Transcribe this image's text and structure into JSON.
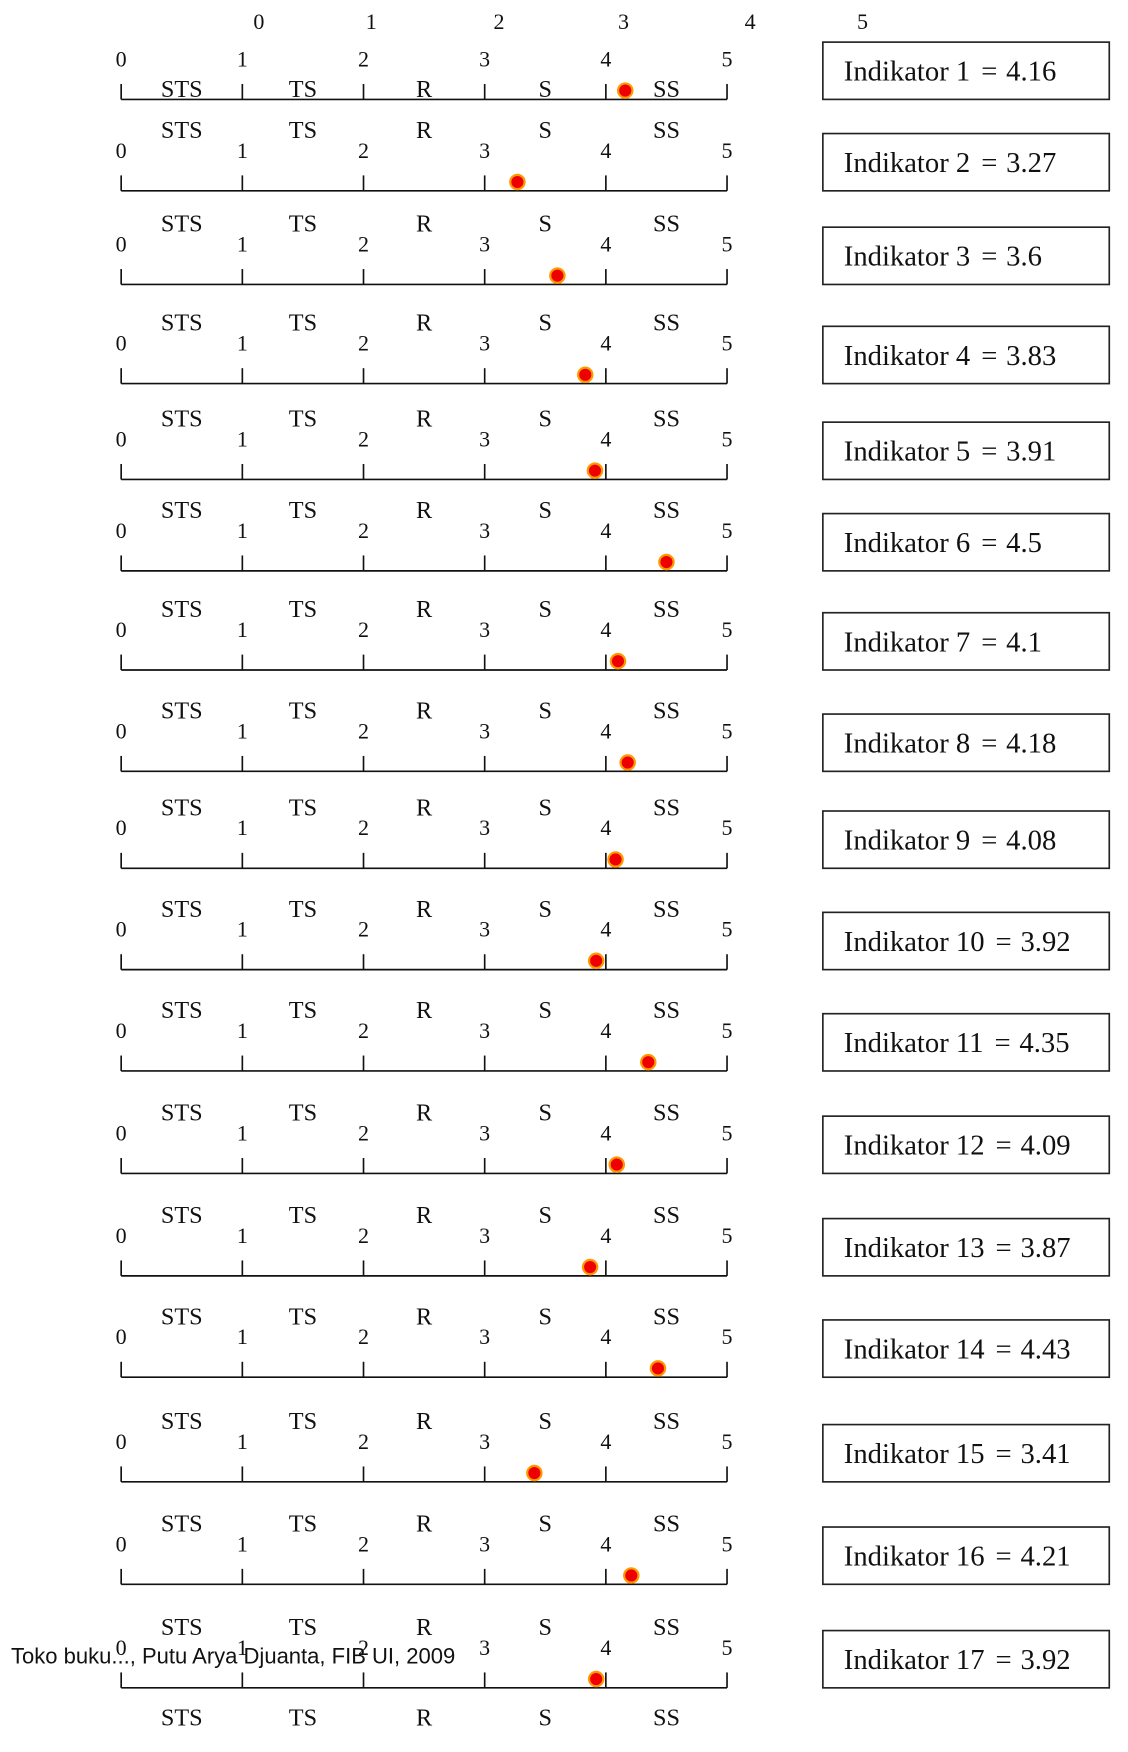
{
  "scale": {
    "ticks": [
      0,
      1,
      2,
      3,
      4,
      5
    ],
    "categories": [
      "STS",
      "TS",
      "R",
      "S",
      "SS"
    ]
  },
  "operator": "=",
  "indicators": [
    {
      "label": "Indikator 1",
      "value": 4.16
    },
    {
      "label": "Indikator 2",
      "value": 3.27
    },
    {
      "label": "Indikator 3",
      "value": 3.6
    },
    {
      "label": "Indikator 4",
      "value": 3.83
    },
    {
      "label": "Indikator 5",
      "value": 3.91
    },
    {
      "label": "Indikator 6",
      "value": 4.5
    },
    {
      "label": "Indikator 7",
      "value": 4.1
    },
    {
      "label": "Indikator 8",
      "value": 4.18
    },
    {
      "label": "Indikator 9",
      "value": 4.08
    },
    {
      "label": "Indikator 10",
      "value": 3.92
    },
    {
      "label": "Indikator 11",
      "value": 4.35
    },
    {
      "label": "Indikator 12",
      "value": 4.09
    },
    {
      "label": "Indikator 13",
      "value": 3.87
    },
    {
      "label": "Indikator 14",
      "value": 4.43
    },
    {
      "label": "Indikator 15",
      "value": 3.41
    },
    {
      "label": "Indikator 16",
      "value": 4.21
    },
    {
      "label": "Indikator 17",
      "value": 3.92
    }
  ],
  "footer": "Toko buku..., Putu Arya Djuanta, FIB UI, 2009"
}
